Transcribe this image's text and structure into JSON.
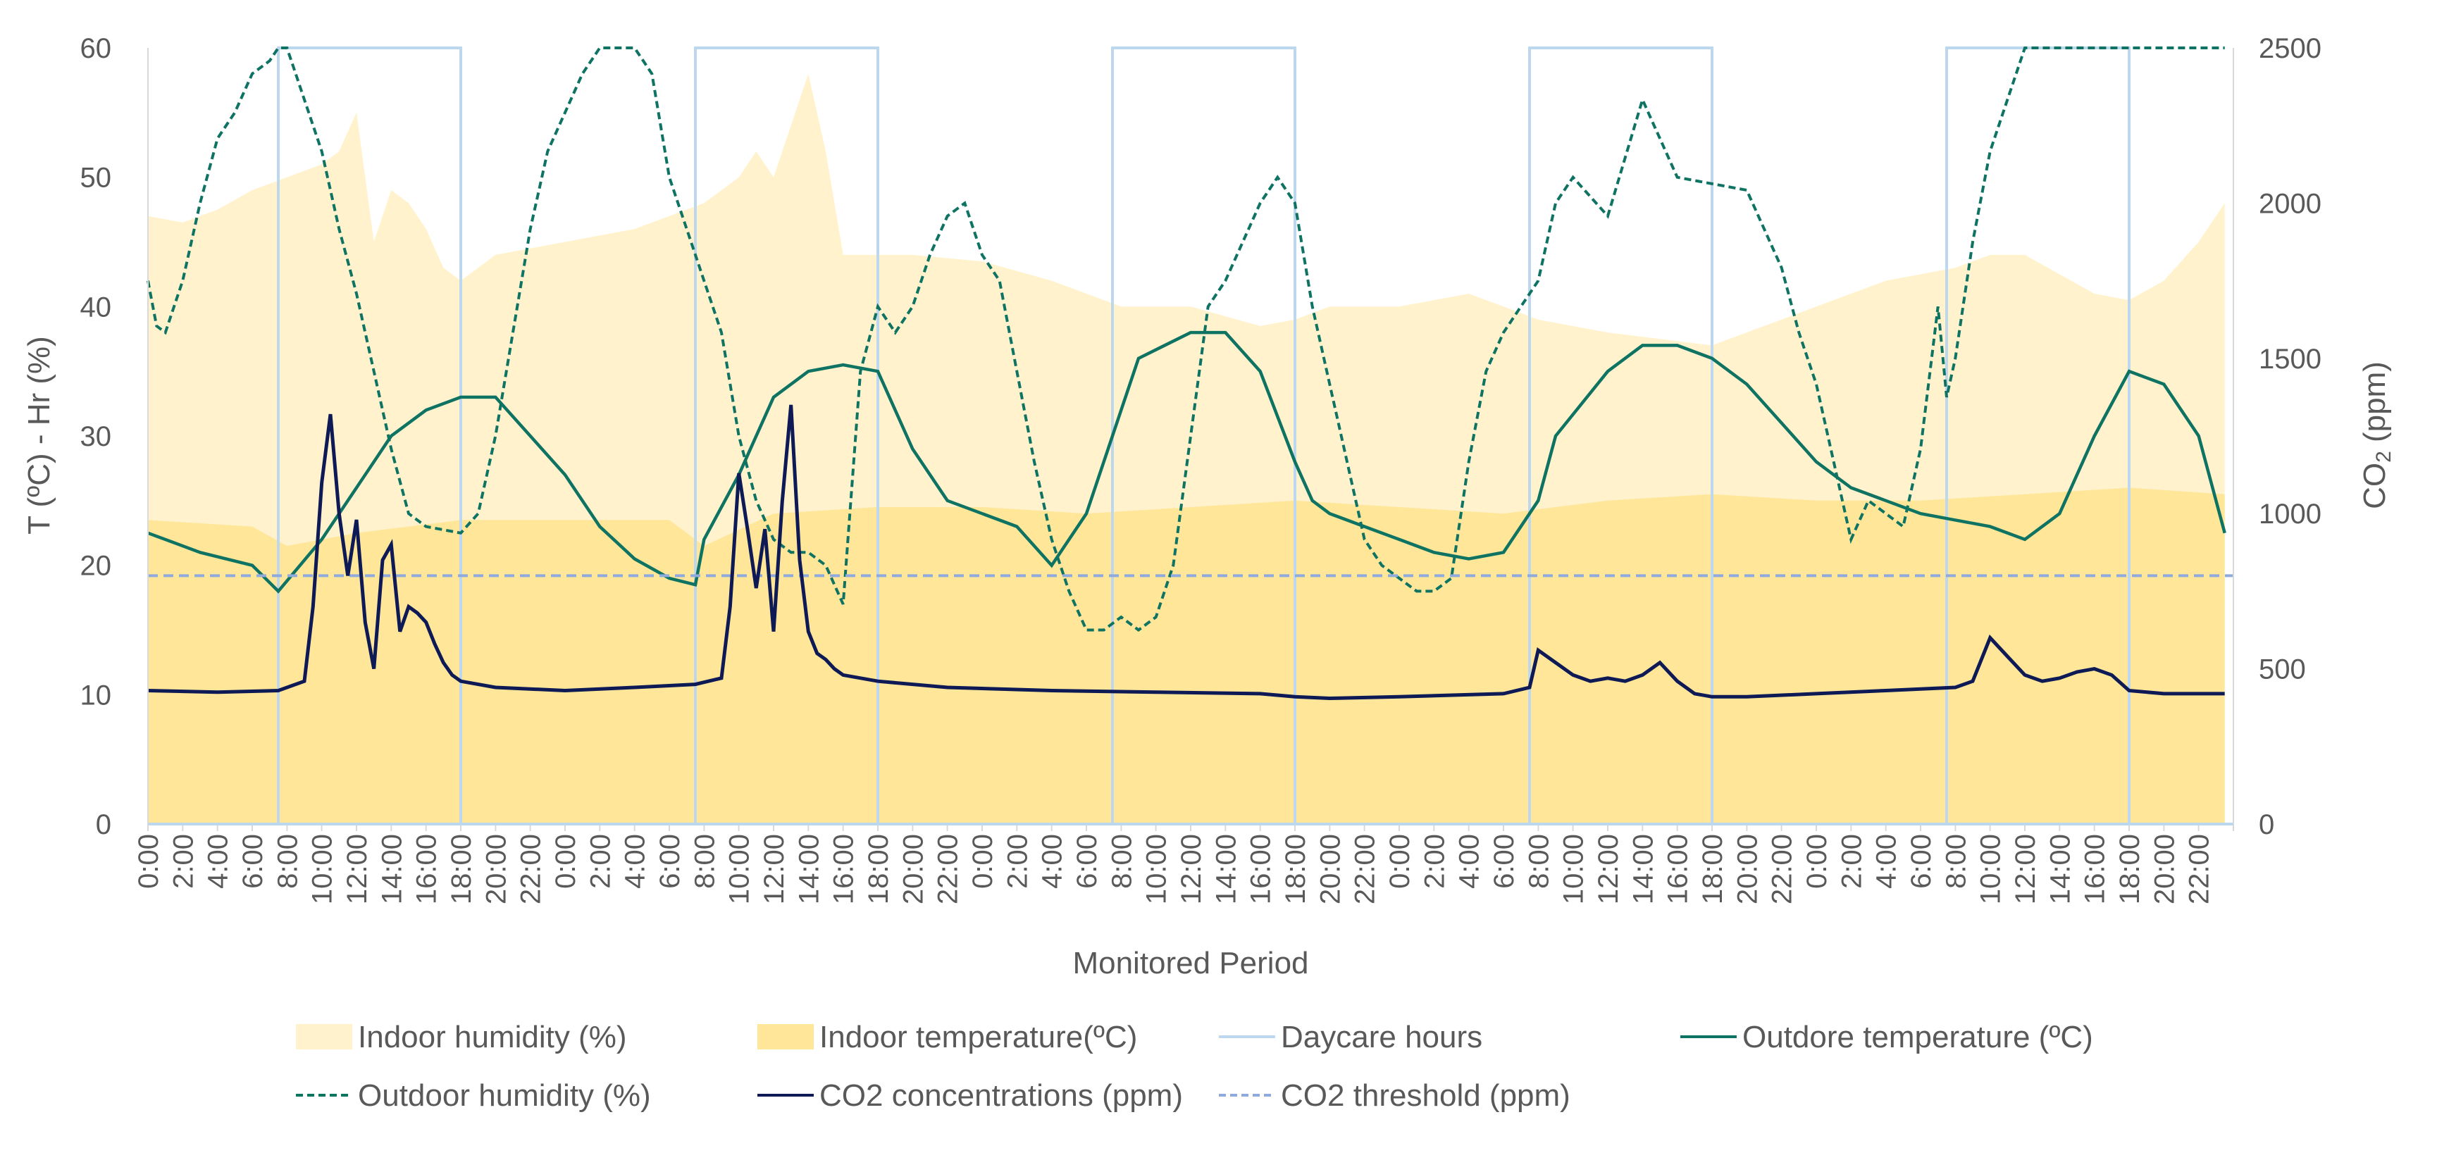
{
  "chart_data": {
    "type": "line",
    "title": "",
    "xlabel": "Monitored Period",
    "ylabel_left": "T (ºC) - Hr (%)",
    "ylabel_right_main": "CO",
    "ylabel_right_sub": "2",
    "ylabel_right_unit": " (ppm)",
    "ylim_left": [
      0,
      60
    ],
    "ylim_right": [
      0,
      2500
    ],
    "yticks_left": [
      "0",
      "10",
      "20",
      "30",
      "40",
      "50",
      "60"
    ],
    "yticks_right": [
      "0",
      "500",
      "1000",
      "1500",
      "2000",
      "2500"
    ],
    "xticks": [
      "0:00",
      "2:00",
      "4:00",
      "6:00",
      "8:00",
      "10:00",
      "12:00",
      "14:00",
      "16:00",
      "18:00",
      "20:00",
      "22:00",
      "0:00",
      "2:00",
      "4:00",
      "6:00",
      "8:00",
      "10:00",
      "12:00",
      "14:00",
      "16:00",
      "18:00",
      "20:00",
      "22:00",
      "0:00",
      "2:00",
      "4:00",
      "6:00",
      "8:00",
      "10:00",
      "12:00",
      "14:00",
      "16:00",
      "18:00",
      "20:00",
      "22:00",
      "0:00",
      "2:00",
      "4:00",
      "6:00",
      "8:00",
      "10:00",
      "12:00",
      "14:00",
      "16:00",
      "18:00",
      "20:00",
      "22:00",
      "0:00",
      "2:00",
      "4:00",
      "6:00",
      "8:00",
      "10:00",
      "12:00",
      "14:00",
      "16:00",
      "18:00",
      "20:00",
      "22:00"
    ],
    "hours_total": 120,
    "daycare_windows": [
      [
        7.5,
        18
      ],
      [
        31.5,
        42
      ],
      [
        55.5,
        66
      ],
      [
        79.5,
        90
      ],
      [
        103.5,
        114
      ]
    ],
    "co2_threshold": 800,
    "legend": [
      {
        "label": "Indoor humidity (%)",
        "kind": "area",
        "color": "#FFF2CC"
      },
      {
        "label": "Indoor temperature(ºC)",
        "kind": "area",
        "color": "#FFE699"
      },
      {
        "label": "Daycare  hours",
        "kind": "line",
        "color": "#BDD7EE"
      },
      {
        "label": "Outdore temperature (ºC)",
        "kind": "line",
        "color": "#0E7363"
      },
      {
        "label": "Outdoor humidity (%)",
        "kind": "dashed",
        "color": "#0E7363"
      },
      {
        "label": "CO2 concentrations (ppm)",
        "kind": "line",
        "color": "#0D1A55"
      },
      {
        "label": "CO2 threshold (ppm)",
        "kind": "dashed",
        "color": "#8FAADC"
      }
    ],
    "series": {
      "indoor_humidity": {
        "name": "Indoor humidity (%)",
        "axis": "left",
        "x": [
          0,
          2,
          4,
          6,
          8,
          10,
          11,
          12,
          13,
          14,
          15,
          16,
          17,
          18,
          20,
          24,
          28,
          30,
          32,
          34,
          35,
          36,
          37,
          38,
          39,
          40,
          42,
          44,
          48,
          52,
          56,
          60,
          64,
          66,
          68,
          72,
          76,
          78,
          80,
          84,
          90,
          96,
          100,
          104,
          106,
          108,
          112,
          114,
          116,
          118,
          119.5
        ],
        "y": [
          47,
          46.5,
          47.5,
          49,
          50,
          51,
          52,
          55,
          45,
          49,
          48,
          46,
          43,
          42,
          44,
          45,
          46,
          47,
          48,
          50,
          52,
          50,
          54,
          58,
          52,
          44,
          44,
          44,
          43.5,
          42,
          40,
          40,
          38.5,
          39,
          40,
          40,
          41,
          40,
          39,
          38,
          37,
          40,
          42,
          43,
          44,
          44,
          41,
          40.5,
          42,
          45,
          48
        ]
      },
      "indoor_temperature": {
        "name": "Indoor temperature(ºC)",
        "axis": "left",
        "x": [
          0,
          6,
          8,
          12,
          18,
          24,
          30,
          32,
          36,
          42,
          48,
          54,
          60,
          66,
          72,
          78,
          84,
          90,
          96,
          102,
          108,
          114,
          119.5
        ],
        "y": [
          23.5,
          23,
          21.5,
          22.5,
          23.5,
          23.5,
          23.5,
          21.5,
          24,
          24.5,
          24.5,
          24,
          24.5,
          25,
          24.5,
          24,
          25,
          25.5,
          25,
          25,
          25.5,
          26,
          25.5
        ]
      },
      "outdoor_temperature": {
        "name": "Outdore temperature (ºC)",
        "axis": "left",
        "x": [
          0,
          3,
          6,
          7.5,
          10,
          12,
          14,
          16,
          18,
          20,
          22,
          24,
          26,
          28,
          30,
          31.5,
          32,
          34,
          36,
          38,
          40,
          42,
          44,
          46,
          48,
          50,
          52,
          54,
          56,
          57,
          60,
          62,
          64,
          66,
          67,
          68,
          70,
          72,
          74,
          76,
          78,
          80,
          81,
          84,
          86,
          88,
          90,
          92,
          94,
          96,
          98,
          100,
          102,
          104,
          106,
          108,
          110,
          112,
          114,
          116,
          118,
          119.5
        ],
        "y": [
          22.5,
          21,
          20,
          18,
          22,
          26,
          30,
          32,
          33,
          33,
          30,
          27,
          23,
          20.5,
          19,
          18.5,
          22,
          27,
          33,
          35,
          35.5,
          35,
          29,
          25,
          24,
          23,
          20,
          24,
          32,
          36,
          38,
          38,
          35,
          28,
          25,
          24,
          23,
          22,
          21,
          20.5,
          21,
          25,
          30,
          35,
          37,
          37,
          36,
          34,
          31,
          28,
          26,
          25,
          24,
          23.5,
          23,
          22,
          24,
          30,
          35,
          34,
          30,
          22.5
        ]
      },
      "outdoor_humidity": {
        "name": "Outdoor humidity (%)",
        "axis": "left",
        "x": [
          0,
          0.5,
          1,
          2,
          3,
          4,
          5,
          6,
          7,
          7.5,
          8,
          8.5,
          9,
          10,
          11,
          12,
          13,
          14,
          15,
          16,
          18,
          19,
          20,
          21,
          22,
          23,
          24,
          25,
          26,
          27,
          28,
          29,
          30,
          31,
          32,
          33,
          34,
          35,
          36,
          37,
          38,
          39,
          40,
          41,
          42,
          43,
          44,
          45,
          46,
          47,
          48,
          49,
          50,
          51,
          52,
          53,
          54,
          55,
          56,
          57,
          58,
          59,
          60,
          61,
          62,
          63,
          64,
          65,
          66,
          67,
          68,
          69,
          70,
          71,
          72,
          73,
          74,
          75,
          76,
          77,
          78,
          79,
          80,
          81,
          82,
          84,
          86,
          88,
          90,
          92,
          93,
          94,
          95,
          96,
          97,
          98,
          99,
          100,
          101,
          102,
          103,
          103.5,
          104,
          105,
          106,
          107,
          108,
          109,
          110,
          111,
          112,
          113,
          114,
          114.5,
          115,
          116,
          117,
          118,
          119,
          119.5
        ],
        "y": [
          42,
          38.5,
          38,
          42,
          48,
          53,
          55,
          58,
          59,
          61,
          60,
          58,
          56,
          52,
          46,
          41,
          35,
          29,
          24,
          23,
          22.5,
          24,
          30,
          38,
          46,
          52,
          55,
          58,
          62,
          61,
          60,
          58,
          50,
          46,
          42,
          38,
          30,
          25,
          22,
          21,
          21,
          20,
          17,
          35,
          40,
          38,
          40,
          44,
          47,
          48,
          44,
          42,
          35,
          28,
          22,
          18,
          15,
          15,
          16,
          15,
          16,
          20,
          30,
          40,
          42,
          45,
          48,
          50,
          48,
          40,
          34,
          28,
          22,
          20,
          19,
          18,
          18,
          19,
          28,
          35,
          38,
          40,
          42,
          48,
          50,
          47,
          56,
          50,
          49.5,
          49,
          46,
          43,
          38,
          34,
          28,
          22,
          25,
          24,
          23,
          29,
          40,
          33,
          36,
          45,
          52,
          56,
          60,
          60,
          60,
          60,
          60,
          60,
          60,
          60,
          60,
          60,
          60,
          60,
          60,
          60
        ]
      },
      "co2": {
        "name": "CO2 concentrations (ppm)",
        "axis": "right",
        "x": [
          0,
          4,
          7.5,
          9,
          9.5,
          10,
          10.5,
          11,
          11.5,
          12,
          12.5,
          13,
          13.5,
          14,
          14.5,
          15,
          15.5,
          16,
          16.5,
          17,
          17.5,
          18,
          20,
          24,
          28,
          31.5,
          33,
          33.5,
          34,
          34.5,
          35,
          35.5,
          36,
          36.5,
          37,
          37.5,
          38,
          38.5,
          39,
          39.5,
          40,
          42,
          46,
          52,
          58,
          64,
          66,
          68,
          72,
          78,
          79.5,
          80,
          81,
          82,
          83,
          84,
          85,
          86,
          87,
          88,
          89,
          90,
          92,
          96,
          100,
          104,
          105,
          106,
          107,
          108,
          109,
          110,
          111,
          112,
          113,
          114,
          116,
          119.5
        ],
        "y": [
          430,
          425,
          430,
          460,
          700,
          1100,
          1320,
          1000,
          800,
          980,
          650,
          500,
          850,
          900,
          620,
          700,
          680,
          650,
          580,
          520,
          480,
          460,
          440,
          430,
          440,
          450,
          470,
          700,
          1130,
          950,
          760,
          950,
          620,
          1040,
          1350,
          850,
          620,
          550,
          530,
          500,
          480,
          460,
          440,
          430,
          425,
          420,
          410,
          405,
          410,
          420,
          440,
          560,
          520,
          480,
          460,
          470,
          460,
          480,
          520,
          460,
          420,
          410,
          410,
          420,
          430,
          440,
          460,
          600,
          540,
          480,
          460,
          470,
          490,
          500,
          480,
          430,
          420,
          420
        ]
      }
    }
  }
}
